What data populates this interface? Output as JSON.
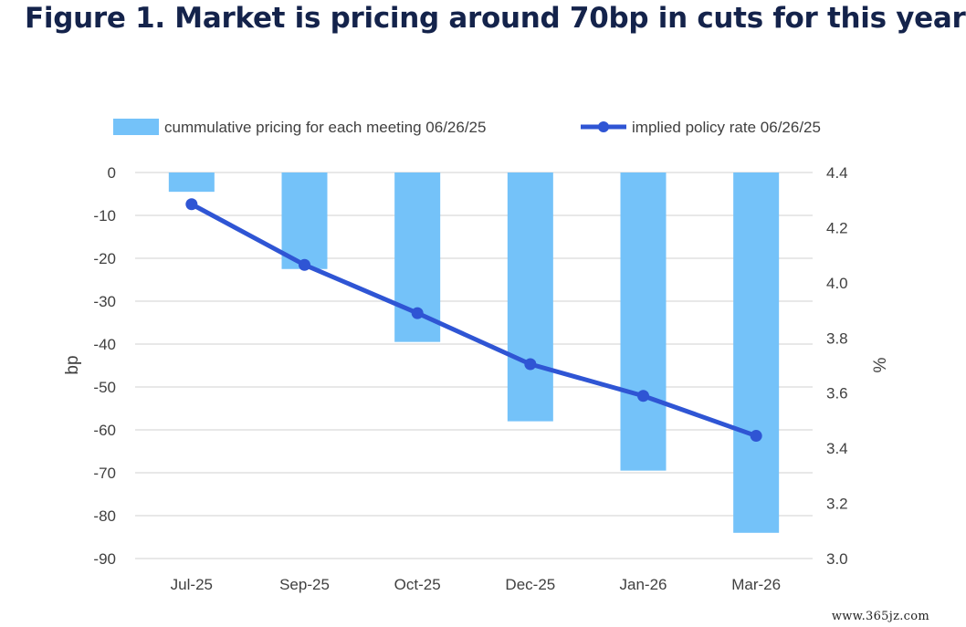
{
  "title": "Figure 1. Market is pricing around 70bp in cuts for this year",
  "watermark": "www.365jz.com",
  "colors": {
    "bar": "#74c2f9",
    "line": "#2f55d4",
    "grid": "#d9d9d9",
    "text": "#404040",
    "title": "#14234b"
  },
  "chart_data": {
    "type": "bar",
    "title": "Figure 1. Market is pricing around 70bp in cuts for this year",
    "categories": [
      "Jul-25",
      "Sep-25",
      "Oct-25",
      "Dec-25",
      "Jan-26",
      "Mar-26"
    ],
    "series": [
      {
        "name": "cummulative pricing for each meeting  06/26/25",
        "type": "bar",
        "axis": "left",
        "values": [
          -4.5,
          -22.5,
          -39.5,
          -58,
          -69.5,
          -84
        ]
      },
      {
        "name": "implied policy rate 06/26/25",
        "type": "line",
        "axis": "right",
        "values": [
          4.285,
          4.065,
          3.89,
          3.705,
          3.59,
          3.445
        ]
      }
    ],
    "ylabel": "bp",
    "y2label": "%",
    "ylim": [
      -90,
      0
    ],
    "yticks": [
      0,
      -10,
      -20,
      -30,
      -40,
      -50,
      -60,
      -70,
      -80,
      -90
    ],
    "y2lim": [
      3.0,
      4.4
    ],
    "y2ticks": [
      "4.4",
      "4.2",
      "4.0",
      "3.8",
      "3.6",
      "3.4",
      "3.2",
      "3.0"
    ],
    "grid": true,
    "legend": "top"
  }
}
